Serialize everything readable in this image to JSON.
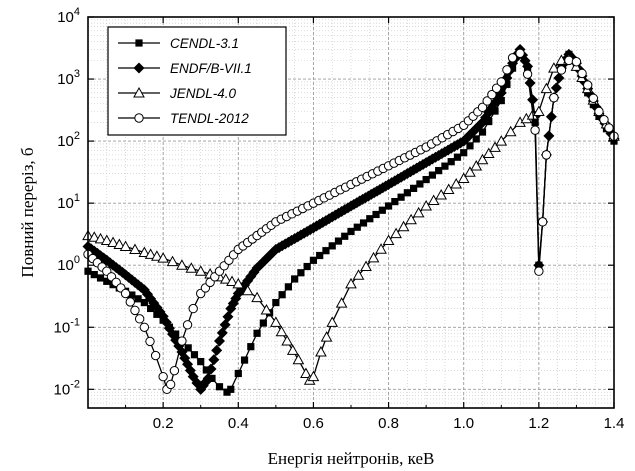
{
  "chart_data": {
    "type": "line",
    "title": "",
    "xlabel": "Енергія нейтронів, кеВ",
    "ylabel": "Повний переріз, б",
    "xlim": [
      0.0,
      1.4
    ],
    "ylim": [
      0.005,
      10000
    ],
    "y_scale": "log",
    "grid": true,
    "legend_position": "top-left",
    "x_ticks": [
      {
        "value": 0.2,
        "label": "0.2"
      },
      {
        "value": 0.4,
        "label": "0.4"
      },
      {
        "value": 0.6,
        "label": "0.6"
      },
      {
        "value": 0.8,
        "label": "0.8"
      },
      {
        "value": 1.0,
        "label": "1.0"
      },
      {
        "value": 1.2,
        "label": "1.2"
      },
      {
        "value": 1.4,
        "label": "1.4"
      }
    ],
    "y_ticks": [
      {
        "value": 0.01,
        "base": "10",
        "exp": "-2"
      },
      {
        "value": 0.1,
        "base": "10",
        "exp": "-1"
      },
      {
        "value": 1,
        "base": "10",
        "exp": "0"
      },
      {
        "value": 10,
        "base": "10",
        "exp": "1"
      },
      {
        "value": 100,
        "base": "10",
        "exp": "2"
      },
      {
        "value": 1000,
        "base": "10",
        "exp": "3"
      },
      {
        "value": 10000,
        "base": "10",
        "exp": "4"
      }
    ],
    "series": [
      {
        "name": "CENDL-3.1",
        "marker": "square-filled",
        "x": [
          0.0,
          0.05,
          0.1,
          0.15,
          0.2,
          0.25,
          0.3,
          0.33,
          0.35,
          0.37,
          0.38,
          0.4,
          0.45,
          0.5,
          0.55,
          0.6,
          0.7,
          0.8,
          0.9,
          1.0,
          1.05,
          1.1,
          1.13,
          1.15,
          1.17,
          1.19,
          1.2,
          1.21,
          1.22,
          1.24,
          1.26,
          1.28,
          1.3,
          1.33,
          1.36,
          1.4
        ],
        "values": [
          0.8,
          0.55,
          0.38,
          0.25,
          0.13,
          0.06,
          0.028,
          0.015,
          0.011,
          0.009,
          0.01,
          0.018,
          0.08,
          0.25,
          0.6,
          1.2,
          3.5,
          9,
          24,
          65,
          140,
          450,
          1500,
          2800,
          1500,
          200,
          1,
          5,
          60,
          500,
          1500,
          2500,
          1800,
          600,
          250,
          100
        ]
      },
      {
        "name": "ENDF/B-VII.1",
        "marker": "diamond-filled",
        "x": [
          0.0,
          0.05,
          0.1,
          0.15,
          0.2,
          0.25,
          0.28,
          0.3,
          0.32,
          0.35,
          0.38,
          0.4,
          0.45,
          0.5,
          0.6,
          0.7,
          0.8,
          0.9,
          1.0,
          1.05,
          1.1,
          1.13,
          1.15,
          1.17,
          1.19,
          1.2,
          1.21,
          1.22,
          1.24,
          1.26,
          1.28,
          1.3,
          1.33,
          1.36,
          1.4
        ],
        "values": [
          2.0,
          1.2,
          0.7,
          0.4,
          0.15,
          0.04,
          0.016,
          0.01,
          0.015,
          0.06,
          0.2,
          0.35,
          0.9,
          1.8,
          4.0,
          9,
          20,
          45,
          100,
          200,
          600,
          1800,
          3000,
          1600,
          250,
          1,
          5,
          60,
          500,
          1500,
          2500,
          1800,
          700,
          280,
          110
        ]
      },
      {
        "name": "JENDL-4.0",
        "marker": "triangle-open",
        "x": [
          0.0,
          0.05,
          0.1,
          0.15,
          0.2,
          0.25,
          0.3,
          0.35,
          0.4,
          0.45,
          0.5,
          0.53,
          0.56,
          0.58,
          0.59,
          0.6,
          0.62,
          0.65,
          0.7,
          0.8,
          0.9,
          1.0,
          1.05,
          1.1,
          1.15,
          1.2,
          1.22,
          1.24,
          1.26,
          1.28,
          1.3,
          1.33,
          1.36,
          1.4
        ],
        "values": [
          3.0,
          2.5,
          2.0,
          1.6,
          1.3,
          1.0,
          0.8,
          0.65,
          0.5,
          0.3,
          0.12,
          0.06,
          0.03,
          0.018,
          0.014,
          0.016,
          0.04,
          0.12,
          0.5,
          2.5,
          9,
          25,
          50,
          100,
          200,
          300,
          700,
          1500,
          2000,
          2100,
          1600,
          700,
          300,
          120
        ]
      },
      {
        "name": "TENDL-2012",
        "marker": "circle-open",
        "x": [
          0.0,
          0.05,
          0.1,
          0.15,
          0.18,
          0.2,
          0.21,
          0.22,
          0.23,
          0.25,
          0.28,
          0.3,
          0.35,
          0.4,
          0.45,
          0.5,
          0.6,
          0.7,
          0.8,
          0.9,
          1.0,
          1.05,
          1.1,
          1.13,
          1.15,
          1.17,
          1.19,
          1.2,
          1.21,
          1.22,
          1.24,
          1.26,
          1.28,
          1.3,
          1.33,
          1.36,
          1.4
        ],
        "values": [
          1.5,
          0.8,
          0.35,
          0.1,
          0.035,
          0.016,
          0.01,
          0.012,
          0.02,
          0.06,
          0.2,
          0.35,
          0.8,
          1.8,
          3.0,
          5.0,
          10,
          20,
          40,
          80,
          180,
          350,
          900,
          2200,
          2600,
          1200,
          150,
          0.8,
          5,
          60,
          500,
          1400,
          2000,
          1900,
          800,
          300,
          120
        ]
      }
    ]
  }
}
